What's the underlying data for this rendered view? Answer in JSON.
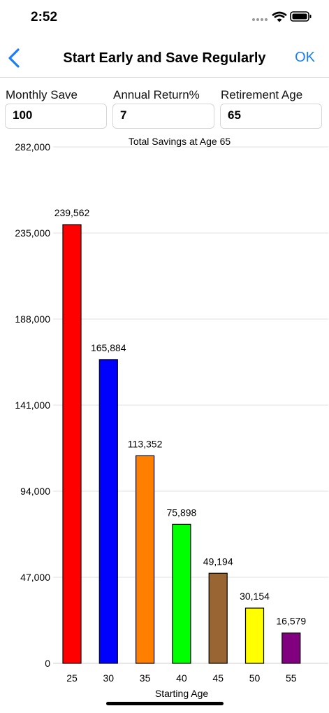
{
  "status": {
    "time": "2:52"
  },
  "nav": {
    "title": "Start Early and Save Regularly",
    "ok_label": "OK"
  },
  "form": {
    "monthly_label": "Monthly Save",
    "monthly_value": "100",
    "return_label": "Annual Return%",
    "return_value": "7",
    "age_label": "Retirement Age",
    "age_value": "65"
  },
  "chart_data": {
    "type": "bar",
    "title": "Total Savings at Age 65",
    "xlabel": "Starting Age",
    "ylabel": "",
    "categories": [
      "25",
      "30",
      "35",
      "40",
      "45",
      "50",
      "55"
    ],
    "values": [
      239562,
      165884,
      113352,
      75898,
      49194,
      30154,
      16579
    ],
    "value_labels": [
      "239,562",
      "165,884",
      "113,352",
      "75,898",
      "49,194",
      "30,154",
      "16,579"
    ],
    "colors": [
      "#ff0000",
      "#0000ff",
      "#ff8000",
      "#00ff00",
      "#996633",
      "#ffff00",
      "#800080"
    ],
    "yticks": [
      0,
      47000,
      94000,
      141000,
      188000,
      235000,
      282000
    ],
    "ytick_labels": [
      "0",
      "47,000",
      "94,000",
      "141,000",
      "188,000",
      "235,000",
      "282,000"
    ],
    "ylim": [
      0,
      282000
    ],
    "grid": true,
    "legend": "none"
  }
}
